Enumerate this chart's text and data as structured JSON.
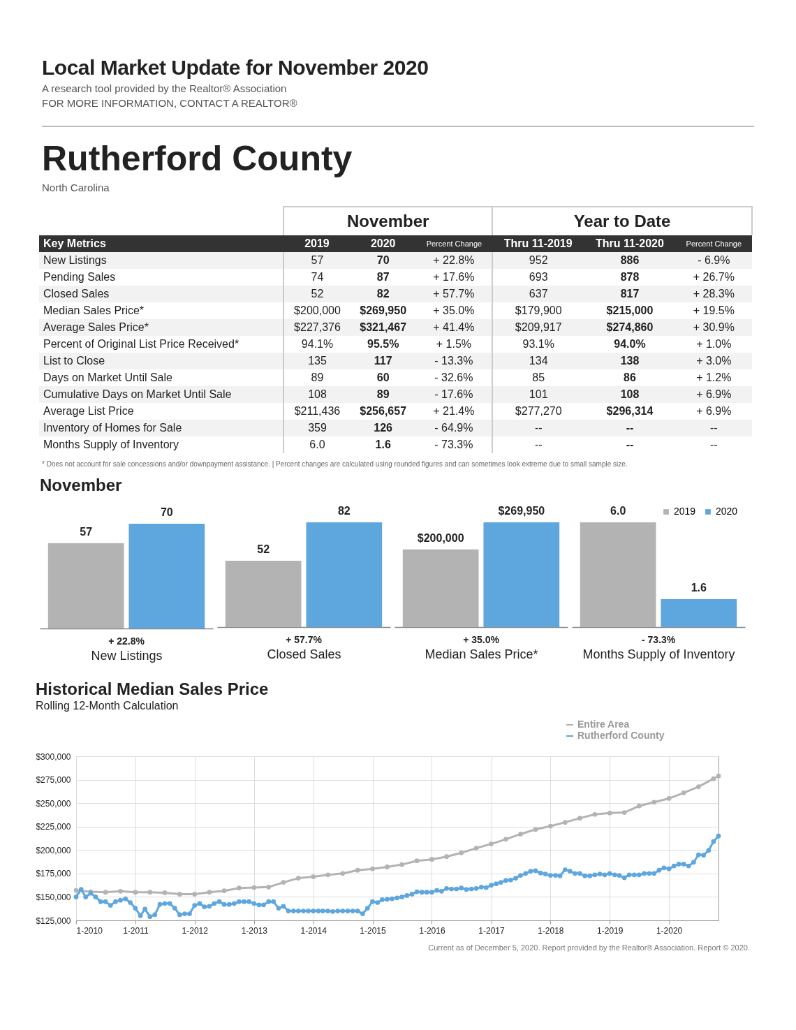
{
  "chart_data": [
    {
      "type": "other",
      "title": "Local Market Update for November 2020",
      "subtitle": "A research tool provided by the Realtor® Association",
      "annotations": [
        "FOR MORE INFORMATION, CONTACT A REALTOR®"
      ]
    },
    {
      "type": "other",
      "title": "Rutherford County",
      "subtitle": "North Carolina",
      "ylabel": "Key Metrics",
      "categories": [
        "2019",
        "2020",
        "Percent Change",
        "Thru 11-2019",
        "Thru 11-2020",
        "Percent Change"
      ],
      "y_categories": [
        "New Listings",
        "Pending Sales",
        "Closed Sales",
        "Median Sales Price*",
        "Average Sales Price*",
        "Percent of Original List Price Received*",
        "List to Close",
        "Days on Market Until Sale",
        "Cumulative Days on Market Until Sale",
        "Average List Price",
        "Inventory of Homes for Sale",
        "Months Supply of Inventory"
      ],
      "cell_labels": [
        [
          "57",
          "70",
          "+ 22.8%",
          "952",
          "886",
          "- 6.9%"
        ],
        [
          "74",
          "87",
          "+ 17.6%",
          "693",
          "878",
          "+ 26.7%"
        ],
        [
          "52",
          "82",
          "+ 57.7%",
          "637",
          "817",
          "+ 28.3%"
        ],
        [
          "$200,000",
          "$269,950",
          "+ 35.0%",
          "$179,900",
          "$215,000",
          "+ 19.5%"
        ],
        [
          "$227,376",
          "$321,467",
          "+ 41.4%",
          "$209,917",
          "$274,860",
          "+ 30.9%"
        ],
        [
          "94.1%",
          "95.5%",
          "+ 1.5%",
          "93.1%",
          "94.0%",
          "+ 1.0%"
        ],
        [
          "135",
          "117",
          "- 13.3%",
          "134",
          "138",
          "+ 3.0%"
        ],
        [
          "89",
          "60",
          "- 32.6%",
          "85",
          "86",
          "+ 1.2%"
        ],
        [
          "108",
          "89",
          "- 17.6%",
          "101",
          "108",
          "+ 6.9%"
        ],
        [
          "$211,436",
          "$256,657",
          "+ 21.4%",
          "$277,270",
          "$296,314",
          "+ 6.9%"
        ],
        [
          "359",
          "126",
          "- 64.9%",
          "--",
          "--",
          "--"
        ],
        [
          "6.0",
          "1.6",
          "- 73.3%",
          "--",
          "--",
          "--"
        ]
      ],
      "annotations": [
        "November",
        "Year to Date",
        "* Does not account for sale concessions and/or downpayment assistance.  |  Percent changes are calculated using rounded figures and can sometimes look extreme due to small sample size."
      ]
    },
    {
      "type": "bar",
      "title": "November",
      "categories": [
        null
      ],
      "xlabel": "New Listings",
      "annotations": [
        "+ 22.8%"
      ],
      "series": [
        {
          "color": "#b3b3b3",
          "values": [
            57
          ],
          "value_labels": [
            "57"
          ]
        },
        {
          "color": "#5ea6de",
          "values": [
            70
          ],
          "value_labels": [
            "70"
          ]
        }
      ]
    },
    {
      "type": "bar",
      "categories": [
        null
      ],
      "xlabel": "Closed Sales",
      "annotations": [
        "+ 57.7%"
      ],
      "series": [
        {
          "color": "#b3b3b3",
          "values": [
            52
          ],
          "value_labels": [
            "52"
          ]
        },
        {
          "color": "#5ea6de",
          "values": [
            82
          ],
          "value_labels": [
            "82"
          ]
        }
      ]
    },
    {
      "type": "bar",
      "categories": [
        null
      ],
      "xlabel": "Median Sales Price*",
      "annotations": [
        "+ 35.0%"
      ],
      "series": [
        {
          "color": "#b3b3b3",
          "values": [
            200000
          ],
          "value_labels": [
            "$200,000"
          ]
        },
        {
          "color": "#5ea6de",
          "values": [
            269950
          ],
          "value_labels": [
            "$269,950"
          ]
        }
      ]
    },
    {
      "type": "bar",
      "categories": [
        null
      ],
      "xlabel": "Months Supply of Inventory",
      "annotations": [
        "- 73.3%"
      ],
      "legend": "top right",
      "series": [
        {
          "name": "2019",
          "color": "#b3b3b3",
          "values": [
            6.0
          ],
          "value_labels": [
            "6.0"
          ]
        },
        {
          "name": "2020",
          "color": "#5ea6de",
          "values": [
            1.6
          ],
          "value_labels": [
            "1.6"
          ]
        }
      ]
    },
    {
      "type": "line",
      "title": "Historical Median Sales Price",
      "subtitle": "Rolling 12-Month Calculation",
      "legend": "top right",
      "grid": true,
      "marker": "circle",
      "line_style": "solid",
      "annotations": [
        "Current as of December 5, 2020. Report provided by the Realtor® Association. Report © 2020."
      ],
      "xlim": [
        "2010-01",
        "2020-11"
      ],
      "xticks": [
        {
          "value": "2010-01",
          "label": "1-2010"
        },
        {
          "value": "2011-01",
          "label": "1-2011"
        },
        {
          "value": "2012-01",
          "label": "1-2012"
        },
        {
          "value": "2013-01",
          "label": "1-2013"
        },
        {
          "value": "2014-01",
          "label": "1-2014"
        },
        {
          "value": "2015-01",
          "label": "1-2015"
        },
        {
          "value": "2016-01",
          "label": "1-2016"
        },
        {
          "value": "2017-01",
          "label": "1-2017"
        },
        {
          "value": "2018-01",
          "label": "1-2018"
        },
        {
          "value": "2019-01",
          "label": "1-2019"
        },
        {
          "value": "2020-01",
          "label": "1-2020"
        }
      ],
      "ylim": [
        125000,
        300000
      ],
      "yticks": [
        {
          "value": 125000,
          "label": "$125,000"
        },
        {
          "value": 150000,
          "label": "$150,000"
        },
        {
          "value": 175000,
          "label": "$175,000"
        },
        {
          "value": 200000,
          "label": "$200,000"
        },
        {
          "value": 225000,
          "label": "$225,000"
        },
        {
          "value": 250000,
          "label": "$250,000"
        },
        {
          "value": 275000,
          "label": "$275,000"
        },
        {
          "value": 300000,
          "label": "$300,000"
        }
      ],
      "x": [
        "2010-01",
        "2010-02",
        "2010-03",
        "2010-04",
        "2010-05",
        "2010-06",
        "2010-07",
        "2010-08",
        "2010-09",
        "2010-10",
        "2010-11",
        "2010-12",
        "2011-01",
        "2011-02",
        "2011-03",
        "2011-04",
        "2011-05",
        "2011-06",
        "2011-07",
        "2011-08",
        "2011-09",
        "2011-10",
        "2011-11",
        "2011-12",
        "2012-01",
        "2012-02",
        "2012-03",
        "2012-04",
        "2012-05",
        "2012-06",
        "2012-07",
        "2012-08",
        "2012-09",
        "2012-10",
        "2012-11",
        "2012-12",
        "2013-01",
        "2013-02",
        "2013-03",
        "2013-04",
        "2013-05",
        "2013-06",
        "2013-07",
        "2013-08",
        "2013-09",
        "2013-10",
        "2013-11",
        "2013-12",
        "2014-01",
        "2014-02",
        "2014-03",
        "2014-04",
        "2014-05",
        "2014-06",
        "2014-07",
        "2014-08",
        "2014-09",
        "2014-10",
        "2014-11",
        "2014-12",
        "2015-01",
        "2015-02",
        "2015-03",
        "2015-04",
        "2015-05",
        "2015-06",
        "2015-07",
        "2015-08",
        "2015-09",
        "2015-10",
        "2015-11",
        "2015-12",
        "2016-01",
        "2016-02",
        "2016-03",
        "2016-04",
        "2016-05",
        "2016-06",
        "2016-07",
        "2016-08",
        "2016-09",
        "2016-10",
        "2016-11",
        "2016-12",
        "2017-01",
        "2017-02",
        "2017-03",
        "2017-04",
        "2017-05",
        "2017-06",
        "2017-07",
        "2017-08",
        "2017-09",
        "2017-10",
        "2017-11",
        "2017-12",
        "2018-01",
        "2018-02",
        "2018-03",
        "2018-04",
        "2018-05",
        "2018-06",
        "2018-07",
        "2018-08",
        "2018-09",
        "2018-10",
        "2018-11",
        "2018-12",
        "2019-01",
        "2019-02",
        "2019-03",
        "2019-04",
        "2019-05",
        "2019-06",
        "2019-07",
        "2019-08",
        "2019-09",
        "2019-10",
        "2019-11",
        "2019-12",
        "2020-01",
        "2020-02",
        "2020-03",
        "2020-04",
        "2020-05",
        "2020-06",
        "2020-07",
        "2020-08",
        "2020-09",
        "2020-10",
        "2020-11"
      ],
      "series": [
        {
          "name": "Entire Area",
          "color": "#b3b3b3",
          "x": [
            "2010-01",
            "2010-04",
            "2010-07",
            "2010-10",
            "2011-01",
            "2011-04",
            "2011-07",
            "2011-10",
            "2012-01",
            "2012-04",
            "2012-07",
            "2012-10",
            "2013-01",
            "2013-04",
            "2013-07",
            "2013-10",
            "2014-01",
            "2014-04",
            "2014-07",
            "2014-10",
            "2015-01",
            "2015-04",
            "2015-07",
            "2015-10",
            "2016-01",
            "2016-04",
            "2016-07",
            "2016-10",
            "2017-01",
            "2017-04",
            "2017-07",
            "2017-10",
            "2018-01",
            "2018-04",
            "2018-07",
            "2018-10",
            "2019-01",
            "2019-04",
            "2019-07",
            "2019-10",
            "2020-01",
            "2020-04",
            "2020-07",
            "2020-10",
            "2020-11"
          ],
          "values": [
            157000,
            155500,
            155000,
            156000,
            155000,
            155000,
            154500,
            153000,
            153000,
            155000,
            156500,
            159500,
            160000,
            160500,
            165500,
            170000,
            171500,
            173500,
            175000,
            178500,
            180000,
            182000,
            184500,
            188500,
            190000,
            193000,
            197000,
            202000,
            206500,
            211500,
            217000,
            222000,
            225500,
            229500,
            234000,
            238000,
            239500,
            240000,
            247000,
            251000,
            255000,
            261000,
            267500,
            276000,
            279000
          ]
        },
        {
          "name": "Rutherford County",
          "color": "#5ea6de",
          "values": [
            150000,
            158000,
            150000,
            154000,
            150000,
            145000,
            145000,
            141000,
            145000,
            146500,
            148000,
            144000,
            138000,
            130000,
            137000,
            129000,
            131000,
            142000,
            143000,
            143000,
            138000,
            131000,
            132000,
            132000,
            141000,
            143000,
            139500,
            140000,
            143000,
            145000,
            142000,
            142000,
            143000,
            145000,
            145000,
            145000,
            143000,
            141500,
            141500,
            145000,
            145000,
            138000,
            140000,
            135000,
            135000,
            135000,
            135000,
            135000,
            135000,
            135000,
            135000,
            135000,
            134500,
            135000,
            135000,
            135000,
            135000,
            135000,
            132000,
            138000,
            145000,
            144000,
            147000,
            147500,
            148000,
            149000,
            150000,
            151500,
            153000,
            155500,
            155000,
            155000,
            155000,
            157000,
            156000,
            159000,
            158500,
            158500,
            159500,
            158000,
            158500,
            159000,
            160500,
            160000,
            162500,
            164000,
            165500,
            167500,
            168000,
            170000,
            173000,
            175000,
            177500,
            178000,
            175500,
            174500,
            173000,
            173000,
            172500,
            179000,
            177500,
            175000,
            175000,
            172500,
            172500,
            173500,
            174500,
            173500,
            175000,
            173500,
            173000,
            170500,
            173500,
            173500,
            173500,
            175000,
            175000,
            175000,
            178500,
            181000,
            180000,
            183000,
            185000,
            185000,
            183000,
            187000,
            195000,
            194500,
            199500,
            209000,
            215000
          ]
        }
      ]
    }
  ]
}
